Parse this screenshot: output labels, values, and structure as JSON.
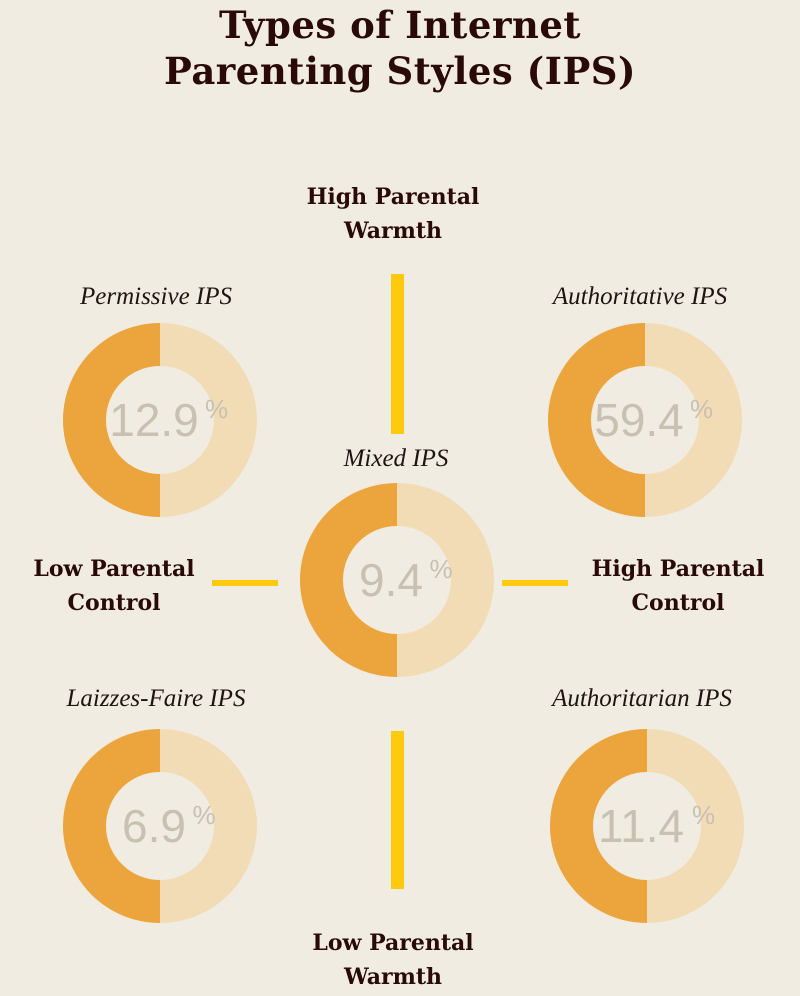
{
  "title": {
    "line1": "Types of Internet",
    "line2": "Parenting Styles (IPS)"
  },
  "axes": {
    "high_warmth": {
      "line1": "High Parental",
      "line2": "Warmth"
    },
    "low_warmth": {
      "line1": "Low Parental",
      "line2": "Warmth"
    },
    "low_control": {
      "line1": "Low Parental",
      "line2": "Control"
    },
    "high_control": {
      "line1": "High Parental",
      "line2": "Control"
    }
  },
  "colors": {
    "background": "#f0ece1",
    "donut_dark": "#eba53c",
    "donut_light": "#f2dcb6",
    "donut_hole": "#f0ece1",
    "axis_bar": "#ffc90e",
    "title_text": "#2a0a08",
    "percent_text": "#c8c1b1"
  },
  "chart_data": {
    "type": "donut-quadrant",
    "title": "Types of Internet Parenting Styles (IPS)",
    "styles": [
      {
        "name": "Permissive IPS",
        "value": "12.9",
        "unit": "%"
      },
      {
        "name": "Authoritative IPS",
        "value": "59.4",
        "unit": "%"
      },
      {
        "name": "Mixed IPS",
        "value": "9.4",
        "unit": "%"
      },
      {
        "name": "Laizzes-Faire IPS",
        "value": "6.9",
        "unit": "%"
      },
      {
        "name": "Authoritarian IPS",
        "value": "11.4",
        "unit": "%"
      }
    ]
  }
}
